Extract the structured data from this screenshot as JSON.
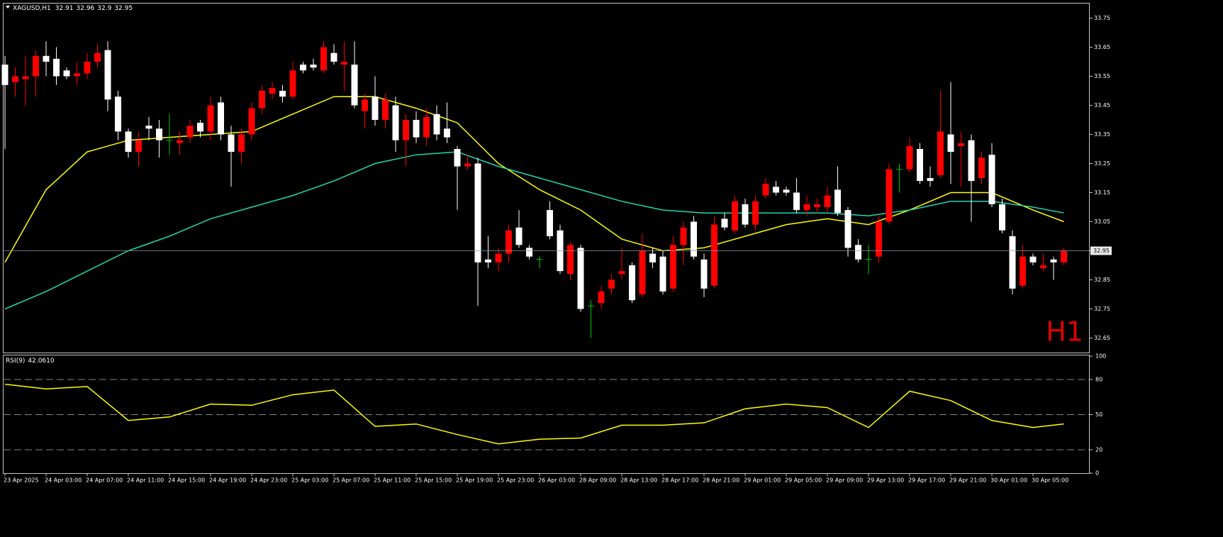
{
  "chart_data": [
    {
      "type": "candlestick",
      "title": "XAGUSD,H1",
      "watermark": "H1",
      "categories": [
        "23 Apr 2025",
        null,
        null,
        null,
        "24 Apr 03:00",
        null,
        null,
        null,
        "24 Apr 07:00",
        null,
        null,
        null,
        "24 Apr 11:00",
        null,
        null,
        null,
        "24 Apr 15:00",
        null,
        null,
        null,
        "24 Apr 19:00",
        null,
        null,
        null,
        "24 Apr 23:00",
        null,
        null,
        null,
        "25 Apr 03:00",
        null,
        null,
        null,
        "25 Apr 07:00",
        null,
        null,
        null,
        "25 Apr 11:00",
        null,
        null,
        null,
        "25 Apr 15:00",
        null,
        null,
        null,
        "25 Apr 19:00",
        null,
        null,
        null,
        "25 Apr 23:00",
        null,
        null,
        null,
        "26 Apr 03:00",
        null,
        null,
        null,
        "28 Apr 09:00",
        null,
        null,
        null,
        "28 Apr 13:00",
        null,
        null,
        null,
        "28 Apr 17:00",
        null,
        null,
        null,
        "28 Apr 21:00",
        null,
        null,
        null,
        "29 Apr 01:00",
        null,
        null,
        null,
        "29 Apr 05:00",
        null,
        null,
        null,
        "29 Apr 09:00",
        null,
        null,
        null,
        "29 Apr 13:00",
        null,
        null,
        null,
        "29 Apr 17:00",
        null,
        null,
        null,
        "29 Apr 21:00",
        null,
        null,
        null,
        "30 Apr 01:00",
        null,
        null,
        null,
        "30 Apr 05:00",
        null,
        null,
        null
      ],
      "open": [
        33.59,
        33.53,
        33.54,
        33.55,
        33.62,
        33.61,
        33.57,
        33.55,
        33.56,
        33.6,
        33.64,
        33.48,
        33.36,
        33.29,
        33.38,
        33.37,
        33.33,
        33.32,
        33.34,
        33.39,
        33.36,
        33.46,
        33.35,
        33.29,
        33.35,
        33.44,
        33.49,
        33.5,
        33.48,
        33.59,
        33.59,
        33.57,
        33.63,
        33.59,
        33.59,
        33.43,
        33.48,
        33.4,
        33.45,
        33.33,
        33.4,
        33.34,
        33.42,
        33.37,
        33.3,
        33.24,
        33.25,
        32.92,
        32.91,
        32.94,
        33.03,
        32.96,
        32.92,
        33.09,
        33.02,
        32.87,
        32.96,
        32.76,
        32.77,
        32.82,
        32.87,
        32.9,
        32.8,
        32.94,
        32.93,
        32.82,
        32.97,
        33.05,
        32.92,
        32.83,
        33.06,
        33.02,
        33.11,
        33.04,
        33.14,
        33.17,
        33.16,
        33.15,
        33.09,
        33.1,
        33.1,
        33.16,
        33.09,
        32.97,
        32.92,
        32.93,
        33.05,
        33.23,
        33.23,
        33.3,
        33.2,
        33.21,
        33.35,
        33.31,
        33.33,
        33.2,
        33.28,
        33.11,
        33.0,
        32.83,
        32.93,
        32.89,
        32.92,
        32.91
      ],
      "high": [
        33.62,
        33.58,
        33.62,
        33.64,
        33.67,
        33.65,
        33.58,
        33.6,
        33.63,
        33.66,
        33.67,
        33.5,
        33.37,
        33.36,
        33.41,
        33.4,
        33.42,
        33.36,
        33.4,
        33.4,
        33.48,
        33.48,
        33.38,
        33.37,
        33.46,
        33.52,
        33.53,
        33.52,
        33.6,
        33.6,
        33.61,
        33.67,
        33.66,
        33.67,
        33.67,
        33.49,
        33.55,
        33.49,
        33.48,
        33.42,
        33.43,
        33.44,
        33.45,
        33.46,
        33.31,
        33.28,
        33.27,
        33.0,
        32.96,
        33.04,
        33.09,
        32.97,
        32.93,
        33.12,
        33.04,
        32.98,
        32.97,
        32.78,
        32.83,
        32.87,
        32.96,
        32.91,
        33.01,
        32.96,
        32.95,
        33.0,
        33.05,
        33.07,
        32.94,
        33.07,
        33.08,
        33.14,
        33.13,
        33.14,
        33.2,
        33.19,
        33.17,
        33.2,
        33.14,
        33.13,
        33.17,
        33.24,
        33.1,
        32.99,
        32.97,
        33.07,
        33.25,
        33.25,
        33.34,
        33.32,
        33.24,
        33.5,
        33.53,
        33.36,
        33.35,
        33.29,
        33.32,
        33.13,
        33.02,
        32.97,
        32.94,
        32.94,
        32.93,
        32.96
      ],
      "low": [
        33.3,
        33.48,
        33.45,
        33.48,
        33.55,
        33.52,
        33.54,
        33.52,
        33.54,
        33.58,
        33.43,
        33.33,
        33.27,
        33.24,
        33.33,
        33.27,
        33.28,
        33.28,
        33.32,
        33.34,
        33.33,
        33.33,
        33.17,
        33.25,
        33.33,
        33.42,
        33.47,
        33.46,
        33.47,
        33.56,
        33.57,
        33.56,
        33.59,
        33.5,
        33.44,
        33.37,
        33.38,
        33.37,
        33.29,
        33.24,
        33.32,
        33.31,
        33.33,
        33.32,
        33.09,
        33.23,
        32.76,
        32.89,
        32.88,
        32.91,
        32.96,
        32.92,
        32.89,
        32.99,
        32.87,
        32.85,
        32.74,
        32.65,
        32.75,
        32.8,
        32.85,
        32.77,
        32.79,
        32.89,
        32.8,
        32.81,
        32.9,
        32.92,
        32.79,
        32.82,
        33.02,
        33.01,
        33.03,
        33.02,
        33.13,
        33.14,
        33.14,
        33.08,
        33.07,
        33.08,
        33.08,
        33.07,
        32.93,
        32.91,
        32.87,
        32.91,
        33.04,
        33.15,
        33.22,
        33.18,
        33.17,
        33.2,
        33.18,
        33.17,
        33.05,
        33.18,
        33.1,
        33.01,
        32.8,
        32.82,
        32.9,
        32.88,
        32.85,
        32.9
      ],
      "close": [
        33.52,
        33.55,
        33.55,
        33.62,
        33.6,
        33.55,
        33.55,
        33.56,
        33.6,
        33.63,
        33.47,
        33.36,
        33.29,
        33.33,
        33.37,
        33.33,
        33.33,
        33.33,
        33.38,
        33.36,
        33.45,
        33.35,
        33.29,
        33.35,
        33.44,
        33.5,
        33.51,
        33.48,
        33.57,
        33.57,
        33.58,
        33.65,
        33.6,
        33.6,
        33.45,
        33.47,
        33.4,
        33.47,
        33.33,
        33.4,
        33.34,
        33.41,
        33.35,
        33.34,
        33.24,
        33.25,
        32.91,
        32.91,
        32.94,
        33.02,
        32.97,
        32.93,
        32.92,
        33.0,
        32.88,
        32.97,
        32.75,
        32.76,
        32.81,
        32.85,
        32.88,
        32.78,
        32.95,
        32.91,
        32.81,
        32.97,
        33.03,
        32.93,
        32.82,
        33.04,
        33.03,
        33.12,
        33.04,
        33.12,
        33.18,
        33.15,
        33.15,
        33.09,
        33.11,
        33.11,
        33.14,
        33.08,
        32.96,
        32.92,
        32.92,
        33.05,
        33.23,
        33.23,
        33.31,
        33.19,
        33.19,
        33.36,
        33.29,
        33.32,
        33.19,
        33.27,
        33.11,
        33.02,
        32.82,
        32.93,
        32.91,
        32.9,
        32.91,
        32.95
      ],
      "up_color": "#ff0000",
      "down_color": "#ffffff",
      "doji_color": "#00c800",
      "overlays": [
        {
          "color": "#ffff00",
          "x": [
            0,
            4,
            8,
            12,
            16,
            20,
            24,
            28,
            32,
            36,
            40,
            44,
            48,
            52,
            56,
            60,
            64,
            68,
            72,
            76,
            80,
            84,
            88,
            92,
            96,
            100,
            103
          ],
          "values": [
            32.91,
            33.16,
            33.29,
            33.33,
            33.34,
            33.35,
            33.36,
            33.42,
            33.48,
            33.48,
            33.44,
            33.39,
            33.25,
            33.16,
            33.09,
            32.99,
            32.95,
            32.96,
            33.0,
            33.04,
            33.06,
            33.04,
            33.09,
            33.15,
            33.15,
            33.09,
            33.05
          ]
        },
        {
          "color": "#20d8b0",
          "x": [
            0,
            4,
            8,
            12,
            16,
            20,
            24,
            28,
            32,
            36,
            40,
            44,
            48,
            52,
            56,
            60,
            64,
            68,
            72,
            76,
            80,
            84,
            88,
            92,
            96,
            100,
            103
          ],
          "values": [
            32.75,
            32.81,
            32.88,
            32.95,
            33.0,
            33.06,
            33.1,
            33.14,
            33.19,
            33.25,
            33.28,
            33.29,
            33.24,
            33.2,
            33.16,
            33.12,
            33.09,
            33.08,
            33.08,
            33.08,
            33.08,
            33.07,
            33.09,
            33.12,
            33.12,
            33.1,
            33.08
          ]
        }
      ],
      "ylim": [
        32.6,
        33.8
      ],
      "yticks": [
        32.65,
        32.75,
        32.85,
        32.95,
        33.05,
        33.15,
        33.25,
        33.35,
        33.45,
        33.55,
        33.65,
        33.75
      ]
    },
    {
      "type": "line",
      "title": "RSI(9)",
      "indicator_value": {
        "value": 42.061,
        "label": "42.0610"
      },
      "color": "#ffff00",
      "x": [
        0,
        4,
        8,
        12,
        16,
        20,
        24,
        28,
        32,
        36,
        40,
        44,
        48,
        52,
        56,
        60,
        64,
        68,
        72,
        76,
        80,
        84,
        88,
        92,
        96,
        100,
        103
      ],
      "values": [
        76,
        72,
        74,
        45,
        48,
        59,
        58,
        67,
        71,
        40,
        42,
        33,
        25,
        29,
        30,
        41,
        41,
        43,
        55,
        59,
        56,
        39,
        70,
        62,
        45,
        39,
        42.061
      ],
      "ylim": [
        0,
        100
      ],
      "yticks": [
        0,
        20,
        50,
        80,
        100
      ]
    }
  ]
}
